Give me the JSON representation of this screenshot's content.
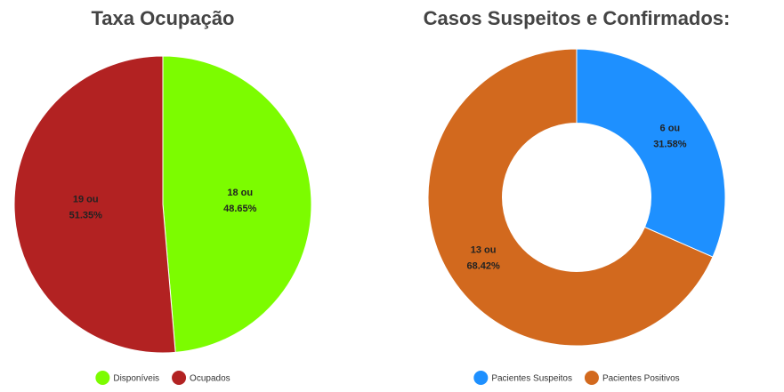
{
  "chart_data": [
    {
      "type": "pie",
      "title": "Taxa Ocupação",
      "categories": [
        "Disponíveis",
        "Ocupados"
      ],
      "values": [
        18,
        19
      ],
      "value_labels": [
        [
          "18 ou",
          "48.65%"
        ],
        [
          "19 ou",
          "51.35%"
        ]
      ],
      "colors": [
        "#7cfc00",
        "#b22222"
      ]
    },
    {
      "type": "doughnut",
      "title": "Casos Suspeitos e Confirmados:",
      "categories": [
        "Pacientes Suspeitos",
        "Pacientes Positivos"
      ],
      "values": [
        6,
        13
      ],
      "value_labels": [
        [
          "6 ou",
          "31.58%"
        ],
        [
          "13 ou",
          "68.42%"
        ]
      ],
      "colors": [
        "#1e90ff",
        "#d2691e"
      ]
    }
  ]
}
